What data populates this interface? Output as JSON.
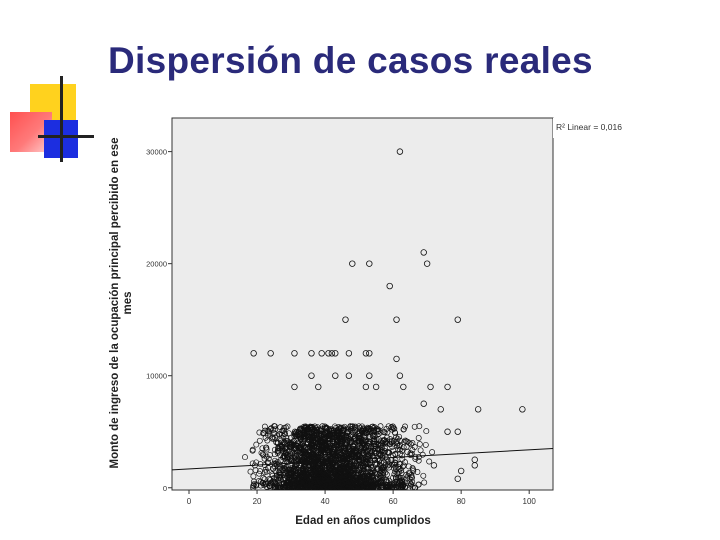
{
  "slide": {
    "title": "Dispersión de casos reales"
  },
  "chart_data": {
    "type": "scatter",
    "title": "",
    "xlabel": "Edad en años cumplidos",
    "ylabel": "Monto de ingreso de la ocupación principal percibido en ese mes",
    "xlim": [
      -5,
      107
    ],
    "ylim": [
      -200,
      33000
    ],
    "x_ticks": [
      0,
      20,
      40,
      60,
      80,
      100
    ],
    "x_tick_labels": [
      "0",
      "20",
      "40",
      "60",
      "80",
      "100"
    ],
    "y_ticks": [
      0,
      10000,
      20000,
      30000
    ],
    "y_tick_labels": [
      "0",
      "10000",
      "20000",
      "30000"
    ],
    "grid": false,
    "legend": {
      "label": "R² Linear = 0,016",
      "position": "top-right"
    },
    "fit_line": {
      "x1": -5,
      "y1": 1600,
      "x2": 107,
      "y2": 3500
    },
    "bulk_points": {
      "x_range": [
        15,
        75
      ],
      "y_range": [
        0,
        5500
      ],
      "mode_x": 35,
      "count": 2600
    },
    "points": [
      {
        "x": 62,
        "y": 30000
      },
      {
        "x": 69,
        "y": 21000
      },
      {
        "x": 70,
        "y": 20000
      },
      {
        "x": 48,
        "y": 20000
      },
      {
        "x": 53,
        "y": 20000
      },
      {
        "x": 59,
        "y": 18000
      },
      {
        "x": 46,
        "y": 15000
      },
      {
        "x": 61,
        "y": 15000
      },
      {
        "x": 79,
        "y": 15000
      },
      {
        "x": 19,
        "y": 12000
      },
      {
        "x": 24,
        "y": 12000
      },
      {
        "x": 31,
        "y": 12000
      },
      {
        "x": 36,
        "y": 12000
      },
      {
        "x": 39,
        "y": 12000
      },
      {
        "x": 41,
        "y": 12000
      },
      {
        "x": 42,
        "y": 12000
      },
      {
        "x": 43,
        "y": 12000
      },
      {
        "x": 47,
        "y": 12000
      },
      {
        "x": 52,
        "y": 12000
      },
      {
        "x": 53,
        "y": 12000
      },
      {
        "x": 61,
        "y": 11500
      },
      {
        "x": 36,
        "y": 10000
      },
      {
        "x": 43,
        "y": 10000
      },
      {
        "x": 47,
        "y": 10000
      },
      {
        "x": 53,
        "y": 10000
      },
      {
        "x": 62,
        "y": 10000
      },
      {
        "x": 63,
        "y": 9000
      },
      {
        "x": 55,
        "y": 9000
      },
      {
        "x": 52,
        "y": 9000
      },
      {
        "x": 38,
        "y": 9000
      },
      {
        "x": 31,
        "y": 9000
      },
      {
        "x": 71,
        "y": 9000
      },
      {
        "x": 76,
        "y": 9000
      },
      {
        "x": 85,
        "y": 7000
      },
      {
        "x": 98,
        "y": 7000
      },
      {
        "x": 74,
        "y": 7000
      },
      {
        "x": 69,
        "y": 7500
      },
      {
        "x": 76,
        "y": 5000
      },
      {
        "x": 79,
        "y": 5000
      },
      {
        "x": 84,
        "y": 2500
      },
      {
        "x": 84,
        "y": 2000
      },
      {
        "x": 80,
        "y": 1500
      },
      {
        "x": 79,
        "y": 800
      },
      {
        "x": 72,
        "y": 2000
      }
    ]
  }
}
